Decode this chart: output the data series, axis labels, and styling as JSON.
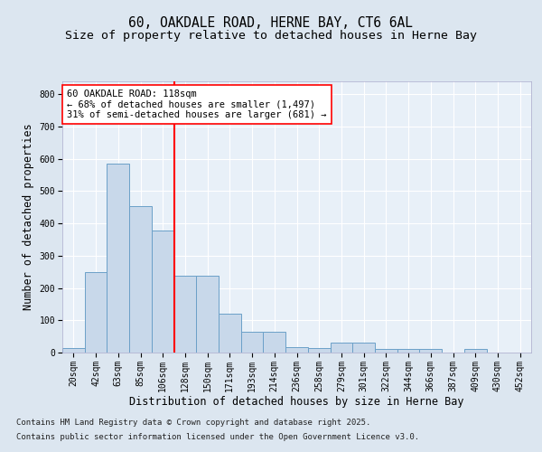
{
  "title_line1": "60, OAKDALE ROAD, HERNE BAY, CT6 6AL",
  "title_line2": "Size of property relative to detached houses in Herne Bay",
  "xlabel": "Distribution of detached houses by size in Herne Bay",
  "ylabel": "Number of detached properties",
  "categories": [
    "20sqm",
    "42sqm",
    "63sqm",
    "85sqm",
    "106sqm",
    "128sqm",
    "150sqm",
    "171sqm",
    "193sqm",
    "214sqm",
    "236sqm",
    "258sqm",
    "279sqm",
    "301sqm",
    "322sqm",
    "344sqm",
    "366sqm",
    "387sqm",
    "409sqm",
    "430sqm",
    "452sqm"
  ],
  "values": [
    15,
    248,
    585,
    455,
    378,
    238,
    238,
    120,
    65,
    65,
    18,
    15,
    30,
    30,
    10,
    10,
    10,
    0,
    10,
    0,
    0
  ],
  "bar_color": "#c8d8ea",
  "bar_edge_color": "#6ba0c8",
  "vline_x_index": 5,
  "vline_color": "red",
  "annotation_text": "60 OAKDALE ROAD: 118sqm\n← 68% of detached houses are smaller (1,497)\n31% of semi-detached houses are larger (681) →",
  "annotation_box_color": "white",
  "annotation_box_edge_color": "red",
  "ylim": [
    0,
    840
  ],
  "yticks": [
    0,
    100,
    200,
    300,
    400,
    500,
    600,
    700,
    800
  ],
  "bg_color": "#dce6f0",
  "plot_bg_color": "#e8f0f8",
  "footer_line1": "Contains HM Land Registry data © Crown copyright and database right 2025.",
  "footer_line2": "Contains public sector information licensed under the Open Government Licence v3.0.",
  "title_fontsize": 10.5,
  "subtitle_fontsize": 9.5,
  "tick_fontsize": 7,
  "xlabel_fontsize": 8.5,
  "ylabel_fontsize": 8.5,
  "footer_fontsize": 6.5,
  "annot_fontsize": 7.5
}
